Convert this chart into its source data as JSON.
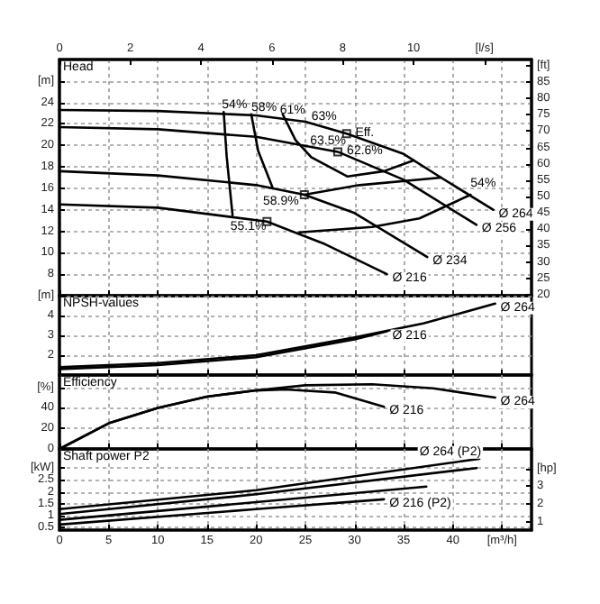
{
  "chart_data": [
    {
      "type": "line",
      "title": "Head",
      "marker": "none",
      "grid": true,
      "tick_labels": "y",
      "xlim": [
        0,
        48
      ],
      "xticks": [
        0,
        5,
        10,
        15,
        20,
        25,
        30,
        35,
        40,
        45
      ],
      "x2lim": [
        0,
        13.33
      ],
      "x2ticks": [
        0,
        2,
        4,
        6,
        8,
        10,
        {
          "value": 12,
          "label": "[l/s]"
        }
      ],
      "ylim": [
        6,
        28
      ],
      "yticks": [
        8,
        10,
        12,
        14,
        16,
        18,
        20,
        22,
        24,
        {
          "value": 26,
          "label": "[m]"
        }
      ],
      "y2lim": [
        19.7,
        91.9
      ],
      "y2ticks": [
        20,
        25,
        30,
        35,
        40,
        45,
        50,
        55,
        60,
        65,
        70,
        75,
        80,
        85,
        {
          "value": 90,
          "label": "[ft]"
        }
      ],
      "series": [
        {
          "name": "Ø 264",
          "color": "#000000",
          "x": [
            0,
            10,
            20,
            25,
            29.2,
            35,
            38.8,
            44.1
          ],
          "values": [
            23.3,
            23.2,
            22.8,
            22.2,
            21.1,
            19.2,
            17.0,
            14.0
          ]
        },
        {
          "name": "Ø 256",
          "color": "#000000",
          "x": [
            0,
            10,
            20,
            28.3,
            35,
            42.4
          ],
          "values": [
            21.7,
            21.5,
            20.8,
            19.4,
            16.8,
            12.6
          ]
        },
        {
          "name": "Ø 234",
          "color": "#000000",
          "x": [
            0,
            10,
            20,
            24.9,
            30,
            37.4
          ],
          "values": [
            17.6,
            17.2,
            16.3,
            15.4,
            13.7,
            9.6
          ]
        },
        {
          "name": "Ø 216",
          "color": "#000000",
          "x": [
            0,
            10,
            21.1,
            27,
            33.3
          ],
          "values": [
            14.5,
            14.2,
            12.9,
            10.8,
            8.0
          ]
        },
        {
          "color": "#000000",
          "x": [
            16.7,
            17.0,
            17.6
          ],
          "values": [
            23.1,
            19.0,
            13.5
          ]
        },
        {
          "color": "#000000",
          "x": [
            24.4,
            31.8,
            36.6,
            41.8
          ],
          "values": [
            11.9,
            12.4,
            13.2,
            15.4
          ]
        },
        {
          "color": "#000000",
          "x": [
            19.5,
            20.2,
            21.7
          ],
          "values": [
            22.9,
            19.5,
            16.0
          ]
        },
        {
          "color": "#000000",
          "x": [
            24.9,
            30.5,
            38.8
          ],
          "values": [
            15.4,
            16.3,
            17.0
          ]
        },
        {
          "color": "#000000",
          "x": [
            22.7,
            24,
            25.6,
            29.3,
            33,
            36
          ],
          "values": [
            22.9,
            20.5,
            18.9,
            17.1,
            17.6,
            18.6
          ]
        },
        {
          "type": "scatter",
          "marker": "square",
          "color": "#000000",
          "x": [
            29.2,
            28.3,
            24.9,
            21.1
          ],
          "values": [
            21.1,
            19.4,
            15.4,
            12.9
          ]
        }
      ],
      "annotations": [
        {
          "text": "54%",
          "x": 17.8,
          "y": 23.7
        },
        {
          "text": "58%",
          "x": 20.8,
          "y": 23.5
        },
        {
          "text": "61%",
          "x": 23.7,
          "y": 23.2
        },
        {
          "text": "63%",
          "x": 26.9,
          "y": 22.6
        },
        {
          "text": "Eff.",
          "x": 29.2,
          "y": 21.1
        },
        {
          "text": "63.5%",
          "x": 27.3,
          "y": 20.4
        },
        {
          "text": "62.6%",
          "x": 28.3,
          "y": 19.4
        },
        {
          "text": "58.9%",
          "x": 24.9,
          "y": 15.4
        },
        {
          "text": "55.1%",
          "x": 19.2,
          "y": 12.4
        },
        {
          "text": "54%",
          "x": 41.8,
          "y": 15.4
        }
      ]
    },
    {
      "type": "line",
      "title": "NPSH-values",
      "marker": "none",
      "grid": true,
      "tick_labels": "y",
      "xlim": [
        0,
        48
      ],
      "xticks": [
        0,
        5,
        10,
        15,
        20,
        25,
        30,
        35,
        40,
        45
      ],
      "ylim": [
        1,
        5
      ],
      "yticks": [
        2,
        3,
        4,
        {
          "value": 5,
          "label": "[m]"
        }
      ],
      "series": [
        {
          "name": "Ø 264",
          "color": "#000000",
          "x": [
            0,
            10,
            20,
            30,
            37,
            44.3
          ],
          "values": [
            1.4,
            1.6,
            2.0,
            2.9,
            3.6,
            4.6
          ]
        },
        {
          "name": "Ø 216",
          "color": "#000000",
          "x": [
            0,
            10,
            20,
            30,
            33.3
          ],
          "values": [
            1.3,
            1.5,
            1.9,
            2.8,
            3.2
          ]
        }
      ]
    },
    {
      "type": "line",
      "title": "Efficiency",
      "marker": "none",
      "grid": true,
      "tick_labels": "y",
      "xlim": [
        0,
        48
      ],
      "xticks": [
        0,
        5,
        10,
        15,
        20,
        25,
        30,
        35,
        40,
        45
      ],
      "ylim": [
        0,
        72
      ],
      "yticks": [
        0,
        20,
        40,
        {
          "value": 60,
          "label": "[%]"
        }
      ],
      "series": [
        {
          "name": "Ø 264",
          "color": "#000000",
          "x": [
            0,
            5,
            10,
            15,
            20,
            25,
            31.8,
            38,
            44.3
          ],
          "values": [
            0,
            25,
            40,
            51,
            57,
            62,
            63,
            59,
            50
          ]
        },
        {
          "name": "Ø 216",
          "color": "#000000",
          "x": [
            0,
            5,
            10,
            15,
            20,
            23,
            28,
            33
          ],
          "values": [
            0,
            25,
            40,
            51,
            57,
            58,
            55,
            41
          ]
        }
      ]
    },
    {
      "type": "line",
      "title": "Shaft power P2",
      "marker": "none",
      "grid": true,
      "xlim": [
        0,
        48
      ],
      "xticks": [
        0,
        5,
        10,
        15,
        20,
        25,
        30,
        35,
        40,
        {
          "value": 45,
          "label": "[m³/h]"
        }
      ],
      "ylim": [
        0.4,
        3.8
      ],
      "yticks": [
        0.5,
        1,
        1.5,
        2,
        2.5,
        {
          "value": 3,
          "label": "[kW]"
        }
      ],
      "y2lim": [
        0.54,
        5.1
      ],
      "y2ticks": [
        1,
        2,
        3,
        {
          "value": 4,
          "label": "[hp]"
        }
      ],
      "series": [
        {
          "name": "Ø 264 (P2)",
          "color": "#000000",
          "x": [
            0,
            20,
            42.7
          ],
          "values": [
            1.28,
            2.07,
            3.39
          ]
        },
        {
          "color": "#000000",
          "x": [
            0,
            20,
            42.4
          ],
          "values": [
            1.07,
            1.9,
            3.0
          ]
        },
        {
          "color": "#000000",
          "x": [
            0,
            20,
            37.3
          ],
          "values": [
            0.83,
            1.57,
            2.22
          ]
        },
        {
          "name": "Ø 216 (P2)",
          "color": "#000000",
          "x": [
            0,
            20,
            33.0
          ],
          "values": [
            0.63,
            1.28,
            1.69
          ]
        }
      ]
    }
  ]
}
